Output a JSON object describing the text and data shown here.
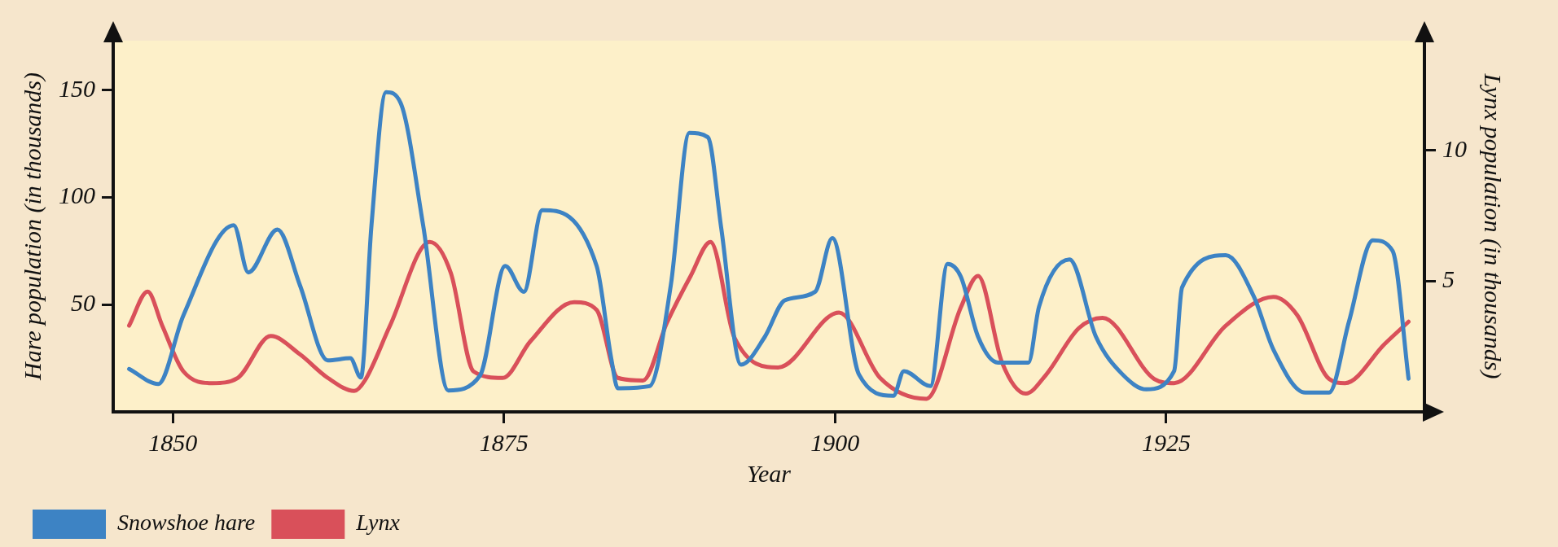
{
  "chart_data": {
    "type": "line",
    "xlabel": "Year",
    "ylabel": "Hare population (in thousands)",
    "y2label": "Lynx population (in thousands)",
    "xlim": [
      1845.5,
      1944.5
    ],
    "xticks": [
      1850,
      1875,
      1900,
      1925
    ],
    "ylim": [
      0,
      173
    ],
    "yticks": [
      50,
      100,
      150
    ],
    "y2lim": [
      0,
      14.2
    ],
    "y2ticks": [
      5,
      10
    ],
    "grid": false,
    "legend": "bottom left",
    "marker": "none",
    "line_style": "solid",
    "series": [
      {
        "name": "Snowshoe hare",
        "color": "#3d83c4",
        "x": [
          1846.7,
          1848.9,
          1850.8,
          1854.6,
          1855.7,
          1857.9,
          1859.6,
          1861.7,
          1863.4,
          1864.2,
          1865.0,
          1866.1,
          1867.2,
          1868.9,
          1870.8,
          1873.2,
          1875.1,
          1876.5,
          1877.9,
          1882.0,
          1883.1,
          1883.6,
          1886.0,
          1887.6,
          1889.0,
          1890.4,
          1891.4,
          1892.9,
          1894.7,
          1896.2,
          1898.5,
          1899.8,
          1901.8,
          1904.4,
          1905.2,
          1907.2,
          1908.5,
          1909.5,
          1910.8,
          1912.3,
          1914.6,
          1915.4,
          1917.7,
          1919.7,
          1921.7,
          1923.5,
          1925.6,
          1926.2,
          1929.5,
          1931.6,
          1933.1,
          1935.5,
          1937.3,
          1938.8,
          1940.6,
          1942.1,
          1943.3
        ],
        "values": [
          20,
          13,
          45,
          87,
          65,
          85,
          59,
          24,
          25,
          16,
          87,
          149,
          144,
          87,
          10,
          17,
          68,
          56,
          94,
          68,
          25,
          11,
          12,
          59,
          130,
          128,
          86,
          22,
          35,
          52,
          56,
          81,
          17.5,
          7.5,
          19,
          12,
          69,
          63,
          35,
          23,
          23,
          49,
          71,
          35,
          17.5,
          10.5,
          19,
          58,
          73,
          54,
          29,
          9,
          9,
          42,
          80,
          75,
          15.5
        ]
      },
      {
        "name": "Lynx",
        "color": "#d9505a",
        "axis": "y2",
        "x": [
          1846.7,
          1848.1,
          1849.2,
          1850.8,
          1853.0,
          1854.9,
          1857.4,
          1859.6,
          1861.7,
          1863.7,
          1864.5,
          1866.4,
          1869.4,
          1871.0,
          1872.7,
          1874.9,
          1877.0,
          1880.3,
          1882.0,
          1883.6,
          1885.5,
          1887.3,
          1889.1,
          1890.6,
          1892.4,
          1895.7,
          1900.3,
          1903.4,
          1906.9,
          1909.5,
          1910.8,
          1912.6,
          1914.4,
          1915.9,
          1918.4,
          1920.2,
          1924.1,
          1925.6,
          1929.5,
          1933.1,
          1934.9,
          1937.3,
          1938.5,
          1941.5,
          1943.3
        ],
        "values": [
          3.3,
          4.6,
          3.3,
          1.55,
          1.1,
          1.3,
          2.9,
          2.2,
          1.3,
          0.8,
          1.2,
          3.3,
          6.5,
          5.3,
          1.55,
          1.3,
          2.7,
          4.2,
          3.9,
          1.3,
          1.2,
          3.4,
          5.2,
          6.5,
          2.85,
          1.7,
          3.8,
          1.3,
          0.5,
          4.0,
          5.2,
          1.9,
          0.7,
          1.4,
          3.2,
          3.6,
          1.26,
          1.1,
          3.3,
          4.4,
          3.7,
          1.26,
          1.1,
          2.6,
          3.45
        ]
      }
    ]
  }
}
